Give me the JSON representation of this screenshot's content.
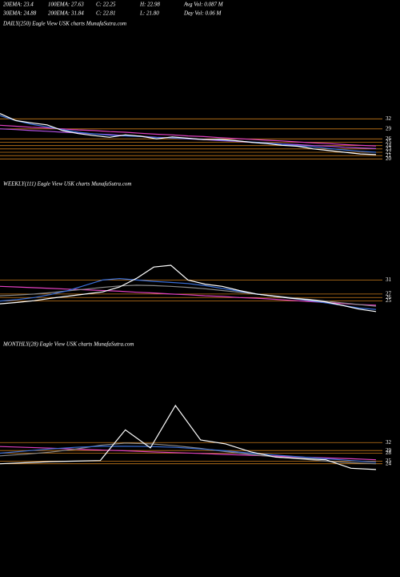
{
  "header": {
    "rows": [
      [
        "20EMA: 23.4",
        "100EMA: 27.63",
        "C: 22.25",
        "H: 22.98",
        "Avg Vol: 0.087 M"
      ],
      [
        "30EMA: 24.88",
        "200EMA: 31.84",
        "C: 22.81",
        "L: 21.80",
        "Day Vol: 0.06 M"
      ]
    ]
  },
  "chart_data": [
    {
      "type": "line",
      "title": "DAILY(250) Eagle   View  USK charts MunafaSutra.com",
      "ylim": [
        16,
        58
      ],
      "yticks": [
        32,
        29,
        26,
        25,
        24,
        23,
        22,
        21,
        20
      ],
      "series": [
        {
          "color": "#e040c0",
          "values": [
            30.1,
            29.8,
            29.5,
            29.3,
            29.0,
            28.7,
            28.5,
            28.2,
            28.0,
            27.7,
            27.4,
            27.2,
            26.9,
            26.7,
            26.4,
            26.1,
            25.9,
            25.6,
            25.4,
            25.1,
            24.8,
            24.6,
            24.3,
            24.1,
            23.9
          ]
        },
        {
          "color": "#b050e0",
          "values": [
            29.0,
            28.8,
            28.5,
            28.3,
            28.0,
            27.8,
            27.5,
            27.3,
            27.0,
            26.8,
            26.5,
            26.3,
            26.0,
            25.8,
            25.5,
            25.3,
            25.0,
            24.8,
            24.5,
            24.3,
            24.0,
            23.8,
            23.5,
            23.3,
            23.1
          ]
        },
        {
          "color": "#3a6fd8",
          "values": [
            33.0,
            31.5,
            30.4,
            29.6,
            28.8,
            28.0,
            27.5,
            27.1,
            26.9,
            26.7,
            26.4,
            26.3,
            26.1,
            25.9,
            25.7,
            25.4,
            25.1,
            24.8,
            24.4,
            24.0,
            23.6,
            23.1,
            22.7,
            22.3,
            22.0
          ]
        },
        {
          "color": "#ffffff",
          "values": [
            33.6,
            31.5,
            30.8,
            30.2,
            28.5,
            27.6,
            27.0,
            26.5,
            27.2,
            26.8,
            26.0,
            26.6,
            26.2,
            25.8,
            25.9,
            25.5,
            25.0,
            24.6,
            24.1,
            23.8,
            23.0,
            22.5,
            22.0,
            21.5,
            21.3
          ]
        }
      ]
    },
    {
      "type": "line",
      "title": "WEEKLY(111) Eagle   View  USK charts MunafaSutra.com",
      "ylim": [
        16,
        56
      ],
      "yticks": [
        31,
        27,
        26,
        25
      ],
      "series": [
        {
          "color": "#e040c0",
          "values": [
            29.2,
            29.0,
            28.8,
            28.6,
            28.4,
            28.2,
            28.0,
            27.8,
            27.5,
            27.3,
            27.0,
            26.8,
            26.5,
            26.3,
            26.0,
            25.8,
            25.5,
            25.2,
            24.9,
            24.6,
            24.3,
            24.0,
            23.8
          ]
        },
        {
          "color": "#888888",
          "values": [
            26.5,
            26.7,
            27.0,
            27.4,
            27.9,
            28.4,
            28.9,
            29.3,
            29.5,
            29.4,
            29.2,
            28.9,
            28.5,
            28.0,
            27.5,
            27.0,
            26.5,
            26.0,
            25.5,
            25.0,
            24.5,
            24.0,
            23.5
          ]
        },
        {
          "color": "#3a6fd8",
          "values": [
            25.0,
            25.4,
            26.0,
            26.9,
            28.0,
            29.5,
            31.0,
            31.4,
            31.0,
            30.6,
            30.3,
            30.0,
            29.4,
            28.6,
            27.8,
            27.0,
            26.4,
            25.8,
            25.2,
            24.5,
            23.8,
            23.0,
            22.6
          ]
        },
        {
          "color": "#ffffff",
          "values": [
            24.2,
            24.6,
            25.1,
            25.8,
            26.4,
            27.0,
            27.6,
            29.0,
            31.5,
            34.7,
            35.2,
            31.0,
            29.8,
            29.2,
            28.0,
            27.0,
            26.4,
            25.8,
            25.4,
            24.8,
            23.8,
            22.7,
            22.0
          ]
        }
      ]
    },
    {
      "type": "line",
      "title": "MONTHLY(28) Eagle   View  USK charts MunafaSutra.com",
      "ylim": [
        13,
        66
      ],
      "yticks": [
        32,
        29,
        28,
        25,
        24
      ],
      "series": [
        {
          "color": "#e040c0",
          "values": [
            30.5,
            30.2,
            29.9,
            29.5,
            29.2,
            28.9,
            28.5,
            28.2,
            27.9,
            27.5,
            27.2,
            26.9,
            26.5,
            26.2,
            25.9,
            25.5
          ]
        },
        {
          "color": "#888888",
          "values": [
            27.0,
            27.6,
            28.4,
            29.5,
            31.0,
            31.8,
            31.5,
            30.8,
            29.8,
            28.6,
            27.5,
            26.6,
            25.8,
            25.0,
            24.4,
            24.0
          ]
        },
        {
          "color": "#3a6fd8",
          "values": [
            28.0,
            28.8,
            29.6,
            30.2,
            30.6,
            30.6,
            30.5,
            30.2,
            29.6,
            28.9,
            28.0,
            27.3,
            26.6,
            25.9,
            25.2,
            24.6
          ]
        },
        {
          "color": "#ffffff",
          "values": [
            24.0,
            24.4,
            24.8,
            25.0,
            25.2,
            36.8,
            30.0,
            46.0,
            33.0,
            31.5,
            28.5,
            26.5,
            26.0,
            25.5,
            22.3,
            21.8
          ]
        }
      ]
    }
  ]
}
